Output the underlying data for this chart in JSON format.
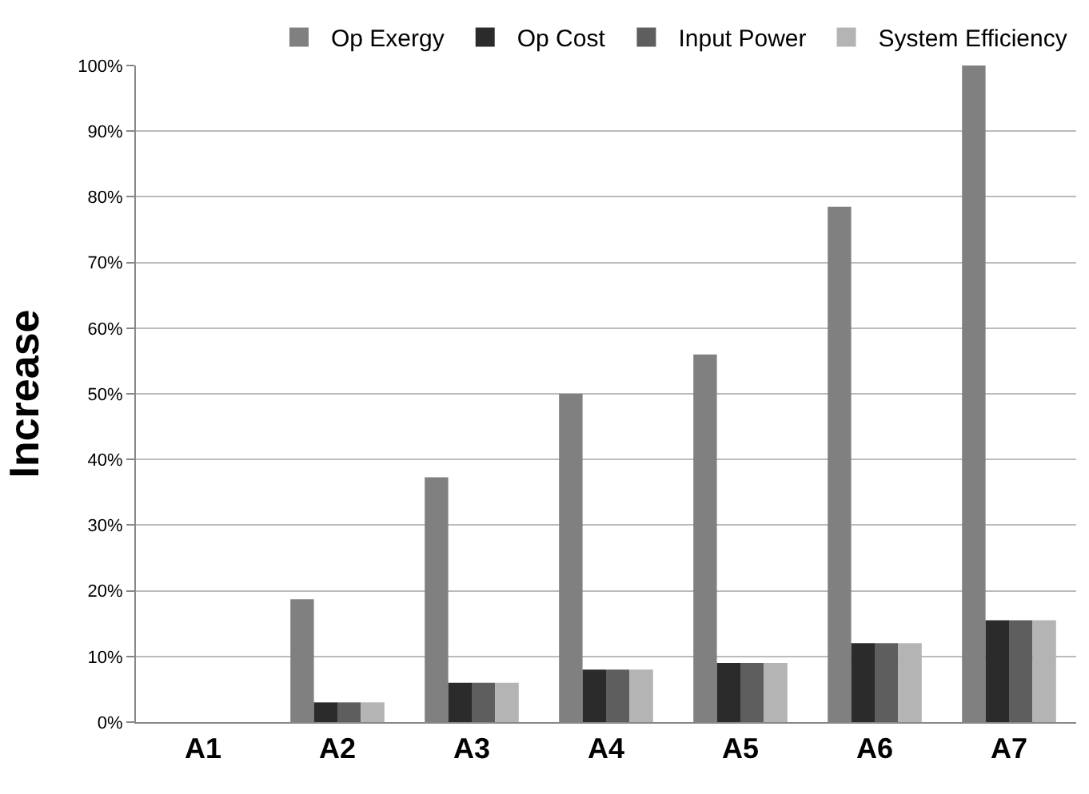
{
  "chart_data": {
    "type": "bar",
    "ylabel": "Increase",
    "categories": [
      "A1",
      "A2",
      "A3",
      "A4",
      "A5",
      "A6",
      "A7"
    ],
    "series": [
      {
        "name": "Op Exergy",
        "color": "#808080",
        "values": [
          0,
          18.7,
          37.3,
          50,
          56,
          78.5,
          100
        ]
      },
      {
        "name": "Op Cost",
        "color": "#2b2b2b",
        "values": [
          0,
          3,
          6,
          8,
          9,
          12,
          15.5
        ]
      },
      {
        "name": "Input Power",
        "color": "#5e5e5e",
        "values": [
          0,
          3,
          6,
          8,
          9,
          12,
          15.5
        ]
      },
      {
        "name": "System Efficiency",
        "color": "#b4b4b4",
        "values": [
          0,
          3,
          6,
          8,
          9,
          12,
          15.5
        ]
      }
    ],
    "ylim": [
      0,
      100
    ],
    "yticks": [
      {
        "value": 0,
        "label": "0%"
      },
      {
        "value": 10,
        "label": "10%"
      },
      {
        "value": 20,
        "label": "20%"
      },
      {
        "value": 30,
        "label": "30%"
      },
      {
        "value": 40,
        "label": "40%"
      },
      {
        "value": 50,
        "label": "50%"
      },
      {
        "value": 60,
        "label": "60%"
      },
      {
        "value": 70,
        "label": "70%"
      },
      {
        "value": 80,
        "label": "80%"
      },
      {
        "value": 90,
        "label": "90%"
      },
      {
        "value": 100,
        "label": "100%"
      }
    ],
    "grid": "y",
    "legend": "top"
  }
}
